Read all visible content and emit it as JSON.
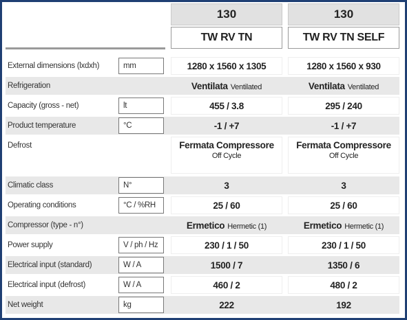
{
  "header": {
    "columns": [
      {
        "code": "130",
        "model": "TW RV TN"
      },
      {
        "code": "130",
        "model": "TW RV TN SELF"
      }
    ]
  },
  "table": {
    "rows": [
      {
        "label": "External dimensions (lxdxh)",
        "unit": "mm",
        "values": [
          "1280 x 1560 x 1305",
          "1280 x 1560 x 930"
        ]
      },
      {
        "label": "Refrigeration",
        "values": [
          {
            "main": "Ventilata",
            "sub": "Ventilated"
          },
          {
            "main": "Ventilata",
            "sub": "Ventilated"
          }
        ]
      },
      {
        "label": "Capacity (gross - net)",
        "unit": "lt",
        "values": [
          "455 / 3.8",
          "295 / 240"
        ]
      },
      {
        "label": "Product temperature",
        "unit": "°C",
        "values": [
          "-1 / +7",
          "-1 / +7"
        ]
      },
      {
        "label": "Defrost",
        "values": [
          {
            "main": "Fermata Compressore",
            "below": "Off Cycle"
          },
          {
            "main": "Fermata Compressore",
            "below": "Off Cycle"
          }
        ]
      },
      {
        "label": "Climatic class",
        "unit": "N°",
        "values": [
          "3",
          "3"
        ]
      },
      {
        "label": "Operating conditions",
        "unit": "°C / %RH",
        "values": [
          "25 / 60",
          "25 / 60"
        ]
      },
      {
        "label": "Compressor (type - n°)",
        "values": [
          {
            "main": "Ermetico",
            "sub": "Hermetic (1)"
          },
          {
            "main": "Ermetico",
            "sub": "Hermetic (1)"
          }
        ]
      },
      {
        "label": "Power supply",
        "unit": "V / ph / Hz",
        "values": [
          "230 / 1 / 50",
          "230 / 1 / 50"
        ]
      },
      {
        "label": "Electrical input (standard)",
        "unit": "W / A",
        "values": [
          "1500 / 7",
          "1350 / 6"
        ]
      },
      {
        "label": "Electrical input (defrost)",
        "unit": "W / A",
        "values": [
          "460 / 2",
          "480 / 2"
        ]
      },
      {
        "label": "Net weight",
        "unit": "kg",
        "values": [
          "222",
          "192"
        ]
      }
    ]
  }
}
